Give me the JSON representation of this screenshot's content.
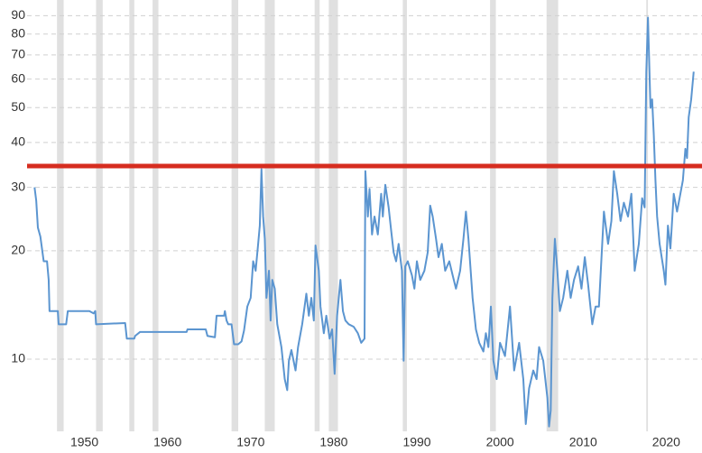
{
  "chart_data": {
    "type": "line",
    "log_scale": true,
    "grid": true,
    "xlim": [
      1943.1,
      2024.3
    ],
    "ylim": [
      6.3,
      99.5
    ],
    "xticks": [
      1950,
      1960,
      1970,
      1980,
      1990,
      2000,
      2010,
      2020
    ],
    "yticks": [
      10,
      20,
      30,
      40,
      50,
      60,
      70,
      80,
      90
    ],
    "shaded_color": "#e0e0e0",
    "shaded_periods": [
      [
        1946.7,
        1947.5
      ],
      [
        1951.4,
        1952.2
      ],
      [
        1955.4,
        1956.0
      ],
      [
        1958.2,
        1958.9
      ],
      [
        1967.7,
        1968.5
      ],
      [
        1971.7,
        1972.9
      ],
      [
        1977.7,
        1978.3
      ],
      [
        1979.4,
        1980.5
      ],
      [
        1988.3,
        1988.8
      ],
      [
        1998.8,
        1999.5
      ],
      [
        2005.6,
        2007.0
      ],
      [
        2017.6,
        2017.8
      ]
    ],
    "reference_line": {
      "value": 34.4,
      "color": "#d62d20"
    },
    "x": [
      1944.0,
      1944.2,
      1944.4,
      1944.7,
      1945.1,
      1945.5,
      1945.7,
      1945.8,
      1946.8,
      1946.9,
      1947.8,
      1948.0,
      1950.6,
      1951.1,
      1951.3,
      1951.4,
      1954.9,
      1955.1,
      1956.0,
      1956.1,
      1956.7,
      1962.3,
      1962.4,
      1964.6,
      1964.8,
      1965.7,
      1965.9,
      1966.8,
      1966.9,
      1967.1,
      1967.3,
      1967.7,
      1968.0,
      1968.5,
      1968.9,
      1969.2,
      1969.6,
      1970.0,
      1970.3,
      1970.6,
      1970.9,
      1971.1,
      1971.3,
      1971.5,
      1971.7,
      1971.9,
      1972.2,
      1972.4,
      1972.6,
      1972.9,
      1973.2,
      1973.7,
      1974.1,
      1974.4,
      1974.6,
      1974.9,
      1975.4,
      1975.7,
      1976.2,
      1976.7,
      1977.0,
      1977.3,
      1977.6,
      1977.8,
      1978.2,
      1978.4,
      1978.8,
      1979.1,
      1979.5,
      1979.8,
      1980.1,
      1980.4,
      1980.8,
      1981.1,
      1981.4,
      1981.8,
      1982.4,
      1982.9,
      1983.3,
      1983.7,
      1983.8,
      1984.1,
      1984.3,
      1984.6,
      1984.9,
      1985.3,
      1985.7,
      1985.9,
      1986.2,
      1986.6,
      1986.9,
      1987.2,
      1987.5,
      1987.8,
      1988.2,
      1988.4,
      1988.6,
      1988.9,
      1989.4,
      1989.7,
      1990.0,
      1990.4,
      1990.9,
      1991.3,
      1991.6,
      1991.9,
      1992.3,
      1992.6,
      1993.0,
      1993.4,
      1993.9,
      1994.3,
      1994.7,
      1995.2,
      1995.6,
      1995.9,
      1996.2,
      1996.7,
      1997.1,
      1997.5,
      1998.0,
      1998.3,
      1998.6,
      1998.9,
      1999.2,
      1999.6,
      2000.0,
      2000.6,
      2001.2,
      2001.7,
      2002.3,
      2002.8,
      2003.1,
      2003.5,
      2004.0,
      2004.4,
      2004.7,
      2005.2,
      2005.7,
      2005.9,
      2006.1,
      2006.3,
      2006.6,
      2006.9,
      2007.2,
      2007.6,
      2008.1,
      2008.5,
      2008.9,
      2009.4,
      2009.8,
      2010.2,
      2010.6,
      2011.1,
      2011.5,
      2011.9,
      2012.5,
      2013.0,
      2013.4,
      2013.7,
      2014.1,
      2014.5,
      2014.9,
      2015.4,
      2015.8,
      2016.2,
      2016.7,
      2017.1,
      2017.4,
      2017.6,
      2017.8,
      2018.1,
      2018.3,
      2018.5,
      2018.7,
      2018.9,
      2019.2,
      2019.7,
      2019.9,
      2020.2,
      2020.5,
      2020.9,
      2021.3,
      2021.7,
      2022.0,
      2022.3,
      2022.5,
      2022.7,
      2023.0,
      2023.3
    ],
    "series": [
      {
        "color": "#5b95d0",
        "values": [
          30.0,
          27.6,
          23.2,
          21.9,
          18.7,
          18.7,
          16.6,
          13.6,
          13.6,
          12.5,
          12.5,
          13.6,
          13.6,
          13.4,
          13.6,
          12.5,
          12.6,
          11.4,
          11.4,
          11.6,
          11.9,
          11.9,
          12.1,
          12.1,
          11.6,
          11.5,
          13.2,
          13.2,
          13.6,
          12.8,
          12.5,
          12.5,
          11.0,
          11.0,
          11.2,
          12.0,
          14.0,
          14.8,
          18.7,
          17.6,
          20.9,
          23.5,
          33.7,
          24.9,
          21.6,
          14.8,
          17.6,
          12.8,
          16.6,
          15.7,
          12.5,
          10.8,
          8.8,
          8.2,
          9.9,
          10.6,
          9.3,
          10.8,
          12.5,
          15.2,
          13.2,
          14.8,
          12.8,
          20.7,
          17.6,
          14.0,
          11.8,
          13.2,
          11.4,
          12.1,
          9.1,
          13.2,
          16.6,
          13.6,
          12.8,
          12.5,
          12.3,
          11.8,
          11.1,
          11.4,
          33.3,
          24.9,
          29.7,
          22.2,
          24.9,
          22.2,
          28.8,
          24.9,
          30.5,
          26.4,
          22.8,
          19.8,
          18.7,
          20.9,
          17.6,
          9.9,
          18.1,
          18.7,
          17.1,
          15.7,
          18.7,
          16.6,
          17.6,
          19.8,
          26.7,
          24.9,
          21.6,
          19.2,
          20.9,
          17.6,
          18.7,
          17.1,
          15.7,
          17.6,
          21.6,
          25.7,
          21.6,
          14.8,
          12.1,
          11.1,
          10.5,
          11.8,
          10.8,
          14.0,
          9.9,
          8.8,
          11.1,
          10.2,
          14.0,
          9.3,
          11.1,
          8.8,
          6.6,
          8.3,
          9.3,
          8.8,
          10.8,
          9.9,
          7.8,
          6.5,
          7.2,
          14.8,
          21.6,
          17.6,
          13.6,
          14.8,
          17.6,
          14.8,
          16.6,
          18.1,
          15.7,
          19.2,
          16.1,
          12.5,
          14.0,
          14.0,
          25.7,
          20.9,
          24.2,
          33.3,
          28.8,
          24.2,
          27.2,
          24.9,
          28.8,
          17.6,
          20.9,
          28.0,
          26.4,
          62.9,
          88.9,
          49.9,
          52.7,
          42.0,
          31.4,
          24.9,
          20.9,
          17.6,
          16.1,
          23.5,
          20.3,
          28.8,
          25.7,
          28.8,
          31.4,
          38.4,
          36.2,
          47.0,
          52.7,
          62.9
        ]
      }
    ]
  }
}
